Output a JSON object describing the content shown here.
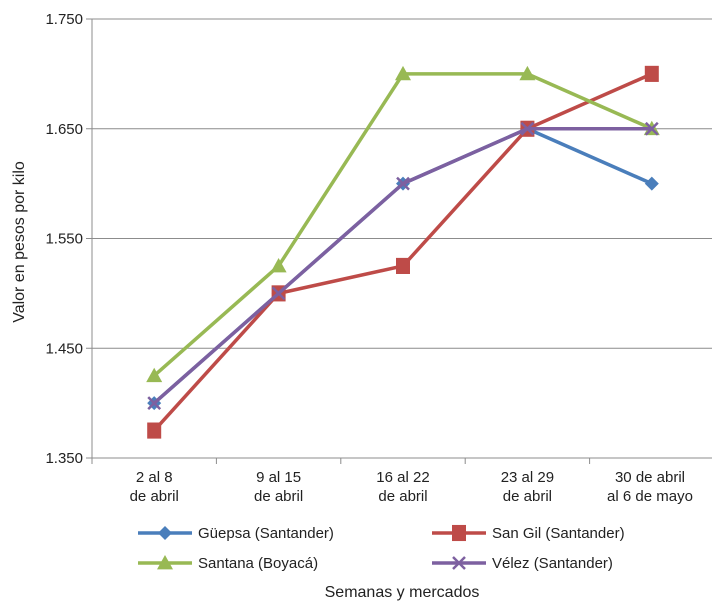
{
  "chart_data": {
    "type": "line",
    "title": "",
    "xlabel": "Semanas y mercados",
    "ylabel": "Valor en pesos por kilo",
    "categories": [
      [
        "2 al 8",
        "de abril"
      ],
      [
        "9 al 15",
        "de abril"
      ],
      [
        "16 al 22",
        "de abril"
      ],
      [
        "23 al 29",
        "de abril"
      ],
      [
        "30 de abril",
        "al 6 de mayo"
      ]
    ],
    "ylim": [
      1350,
      1750
    ],
    "yticks": [
      1350,
      1450,
      1550,
      1650,
      1750
    ],
    "ytick_labels": [
      "1.350",
      "1.450",
      "1.550",
      "1.650",
      "1.750"
    ],
    "grid": "horizontal",
    "legend_position": "bottom",
    "series": [
      {
        "name": "Güepsa (Santander)",
        "color": "#4a7ebb",
        "marker": "diamond",
        "values": [
          1400,
          1500,
          1600,
          1650,
          1600
        ]
      },
      {
        "name": "San Gil (Santander)",
        "color": "#be4b48",
        "marker": "square",
        "values": [
          1375,
          1500,
          1525,
          1650,
          1700
        ]
      },
      {
        "name": "Santana (Boyacá)",
        "color": "#98b954",
        "marker": "triangle",
        "values": [
          1425,
          1525,
          1700,
          1700,
          1650
        ]
      },
      {
        "name": "Vélez (Santander)",
        "color": "#7d60a0",
        "marker": "x",
        "values": [
          1400,
          1500,
          1600,
          1650,
          1650
        ]
      }
    ]
  }
}
